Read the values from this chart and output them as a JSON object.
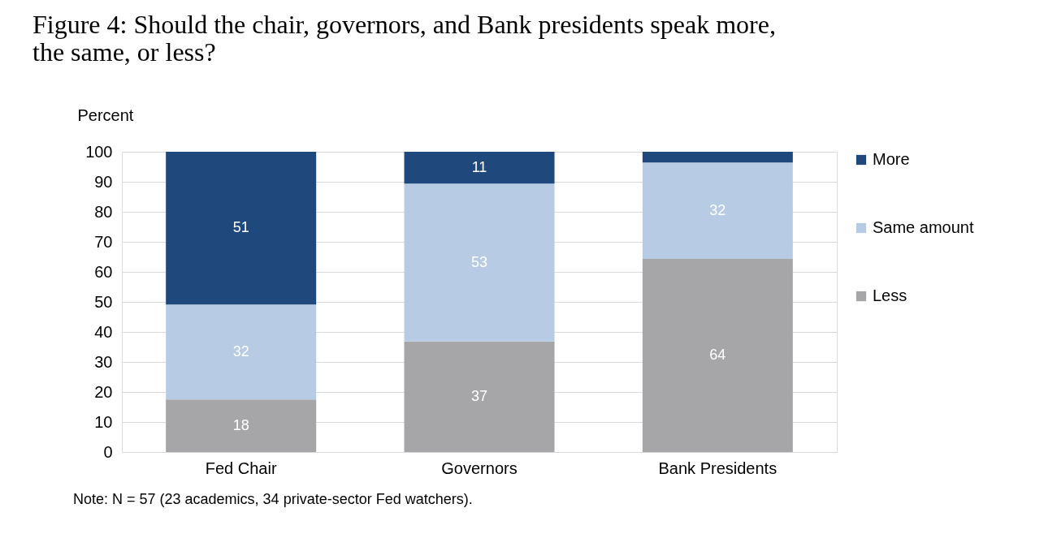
{
  "chart_data": {
    "type": "bar",
    "stacked": true,
    "title": [
      "Figure 4: Should the chair, governors, and Bank presidents speak more,",
      "the same, or less?"
    ],
    "ylabel": "Percent",
    "categories": [
      "Fed Chair",
      "Governors",
      "Bank Presidents"
    ],
    "series": [
      {
        "name": "Less",
        "color": "#a6a6a9",
        "values": [
          17.5,
          36.8,
          64.3
        ],
        "value_labels": [
          "18",
          "37",
          "64"
        ]
      },
      {
        "name": "Same amount",
        "color": "#b7cce4",
        "values": [
          31.6,
          52.6,
          32.1
        ],
        "value_labels": [
          "32",
          "53",
          "32"
        ]
      },
      {
        "name": "More",
        "color": "#1f497d",
        "values": [
          50.9,
          10.6,
          3.6
        ],
        "value_labels": [
          "51",
          "11",
          null
        ]
      }
    ],
    "ylim": [
      0,
      100
    ],
    "yticks": [
      0,
      10,
      20,
      30,
      40,
      50,
      60,
      70,
      80,
      90,
      100
    ],
    "grid": "y",
    "legend": "right",
    "annotations": [
      "Note: N = 57 (23 academics, 34 private-sector Fed watchers)."
    ]
  }
}
